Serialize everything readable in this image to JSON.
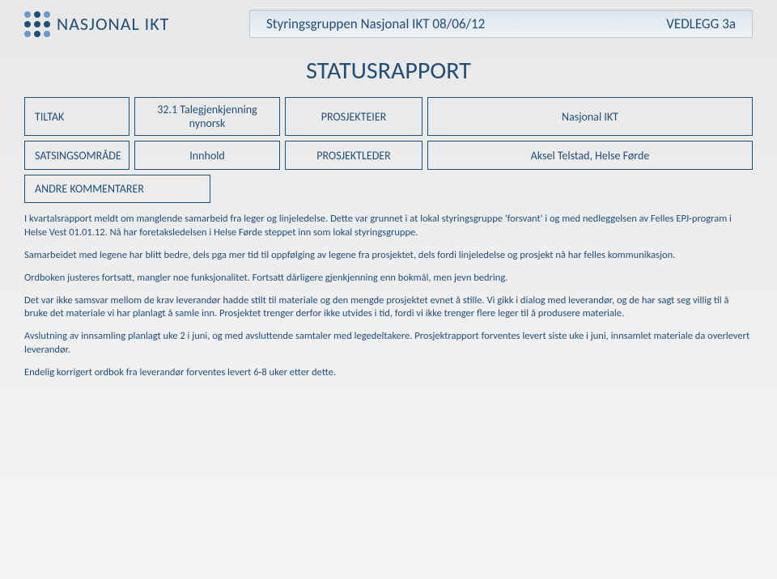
{
  "colors": {
    "primary": "#1f4e79",
    "bg_gradient_top": "#e8e8e8",
    "bg_gradient_bottom": "#f5f5f5",
    "bar_border": "#b9c5d0"
  },
  "logo": {
    "text": "NASJONAL IKT"
  },
  "header": {
    "meeting": "Styringsgruppen Nasjonal IKT 08/06/12",
    "attachment": "VEDLEGG 3a"
  },
  "report_title": "STATUSRAPPORT",
  "fields": {
    "tiltak_label": "TILTAK",
    "tiltak_value": "32.1 Talegjenkjenning nynorsk",
    "prosjekteier_label": "PROSJEKTEIER",
    "prosjekteier_value": "Nasjonal IKT",
    "satsing_label": "SATSINGSOMRÅDE",
    "satsing_value": "Innhold",
    "leder_label": "PROSJEKTLEDER",
    "leder_value": "Aksel Telstad, Helse Førde",
    "andre_label": "ANDRE KOMMENTARER"
  },
  "body": {
    "p1": "I kvartalsrapport meldt om manglende samarbeid fra leger og linjeledelse. Dette var grunnet i at lokal styringsgruppe 'forsvant' i og med nedleggelsen av Felles EPJ-program i Helse Vest 01.01.12. Nå har foretaksledelsen i Helse Førde steppet inn som lokal styringsgruppe.",
    "p2": "Samarbeidet med legene har blitt bedre, dels pga mer tid til oppfølging av legene fra prosjektet, dels fordi linjeledelse og prosjekt nå har felles kommunikasjon.",
    "p3": "Ordboken justeres fortsatt, mangler noe funksjonalitet. Fortsatt dårligere gjenkjenning enn bokmål, men jevn bedring.",
    "p4": "Det var ikke samsvar mellom de krav leverandør hadde stilt til materiale og den mengde prosjektet evnet å stille. Vi gikk i dialog med leverandør, og de har sagt seg villig til å bruke det materiale vi har planlagt å samle inn. Prosjektet trenger derfor ikke utvides i tid, fordi vi ikke trenger flere leger til å produsere materiale.",
    "p5": "Avslutning av innsamling planlagt uke 2 i juni, og med avsluttende samtaler med legedeltakere. Prosjektrapport forventes levert siste uke i juni, innsamlet materiale da overlevert leverandør.",
    "p6": "Endelig korrigert ordbok fra leverandør forventes levert 6-8 uker etter dette."
  }
}
